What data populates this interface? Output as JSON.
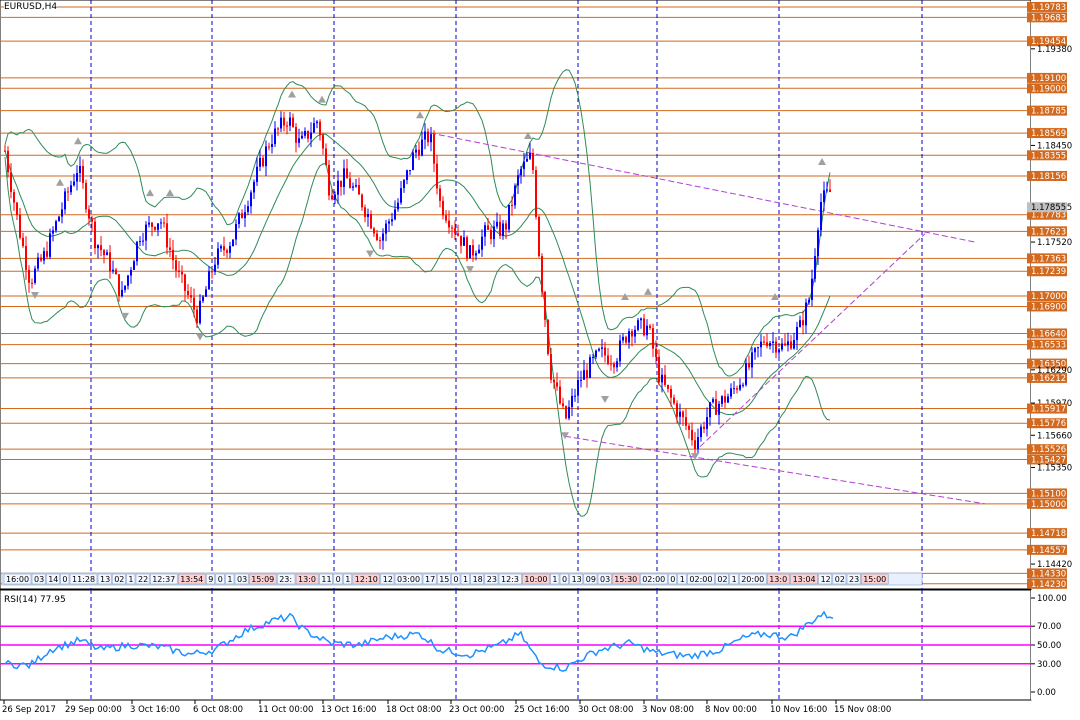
{
  "symbol": "EURUSD,H4",
  "rsi_label": "RSI(14) 77.95",
  "colors": {
    "hline": "#d2691e",
    "vgrid": "#0000cd",
    "bull": "#0000ff",
    "bear": "#ff0000",
    "bands": "#2e8b57",
    "trend": "#b040d0",
    "rsi_line": "#1e90ff",
    "rsi_level": "#ff00ff",
    "fractal": "#a0a0a0"
  },
  "price_axis": {
    "labels": [
      "1.19783",
      "1.19683",
      "1.19454",
      "1.19380",
      "1.19100",
      "1.19000",
      "1.18785",
      "1.18569",
      "1.18450",
      "1.18355",
      "1.18156",
      "1.17855",
      "1.17783",
      "1.17623",
      "1.17520",
      "1.17363",
      "1.17239",
      "1.17000",
      "1.16900",
      "1.16640",
      "1.16533",
      "1.16350",
      "1.16290",
      "1.16212",
      "1.15970",
      "1.15917",
      "1.15776",
      "1.15660",
      "1.15526",
      "1.15427",
      "1.15350",
      "1.15100",
      "1.15000",
      "1.14718",
      "1.14557",
      "1.14420",
      "1.14330",
      "1.14230"
    ],
    "highlighted": [
      "1.19783",
      "1.19683",
      "1.19454",
      "1.19100",
      "1.19000",
      "1.18785",
      "1.18569",
      "1.18355",
      "1.18156",
      "1.17783",
      "1.17623",
      "1.17363",
      "1.17239",
      "1.17000",
      "1.16900",
      "1.16640",
      "1.16533",
      "1.16350",
      "1.16212",
      "1.15917",
      "1.15776",
      "1.15526",
      "1.15427",
      "1.15100",
      "1.15000",
      "1.14718",
      "1.14557",
      "1.14330",
      "1.14230"
    ],
    "current": "1.17855"
  },
  "levels": [
    1.19783,
    1.19683,
    1.19454,
    1.191,
    1.19,
    1.18785,
    1.18569,
    1.18355,
    1.18156,
    1.17783,
    1.17623,
    1.17363,
    1.17239,
    1.17,
    1.169,
    1.1664,
    1.16533,
    1.1635,
    1.16212,
    1.15917,
    1.15776,
    1.15526,
    1.15427,
    1.151,
    1.15,
    1.14718,
    1.14557,
    1.1433,
    1.1423
  ],
  "time_axis": [
    "26 Sep 2017",
    "29 Sep 00:00",
    "3 Oct 16:00",
    "6 Oct 08:00",
    "11 Oct 00:00",
    "13 Oct 16:00",
    "18 Oct 08:00",
    "23 Oct 00:00",
    "25 Oct 16:00",
    "30 Oct 08:00",
    "3 Nov 08:00",
    "8 Nov 00:00",
    "10 Nov 16:00",
    "15 Nov 08:00"
  ],
  "time_strip": [
    "16:00",
    "03",
    "14",
    "0",
    "11:28",
    "13",
    "02",
    "1",
    "22",
    "12:37",
    "13:54",
    "9",
    "0",
    "1",
    "03",
    "15:09",
    "23:",
    "13:0",
    "11",
    "0",
    "1",
    "12:10",
    "12",
    "03:00",
    "17",
    "15",
    "0",
    "1",
    "18",
    "23",
    "12:3",
    "10:00",
    "1",
    "0",
    "13",
    "09",
    "03",
    "15:30",
    "02:00",
    "0",
    "1",
    "02:00",
    "02",
    "1",
    "20:00",
    "13:0",
    "13:04",
    "12",
    "02",
    "23",
    "15:00"
  ],
  "rsi_axis": [
    "100.00",
    "70.00",
    "50.00",
    "30.00",
    "0.00"
  ],
  "rsi_levels": [
    70,
    50,
    30
  ],
  "chart_data": {
    "type": "candlestick",
    "title": "EURUSD,H4",
    "ylim": [
      1.1418,
      1.1985
    ],
    "current_price": 1.17855,
    "rsi": {
      "period": 14,
      "value": 77.95,
      "ylim": [
        0,
        100
      ],
      "levels": [
        70,
        50,
        30
      ]
    }
  }
}
